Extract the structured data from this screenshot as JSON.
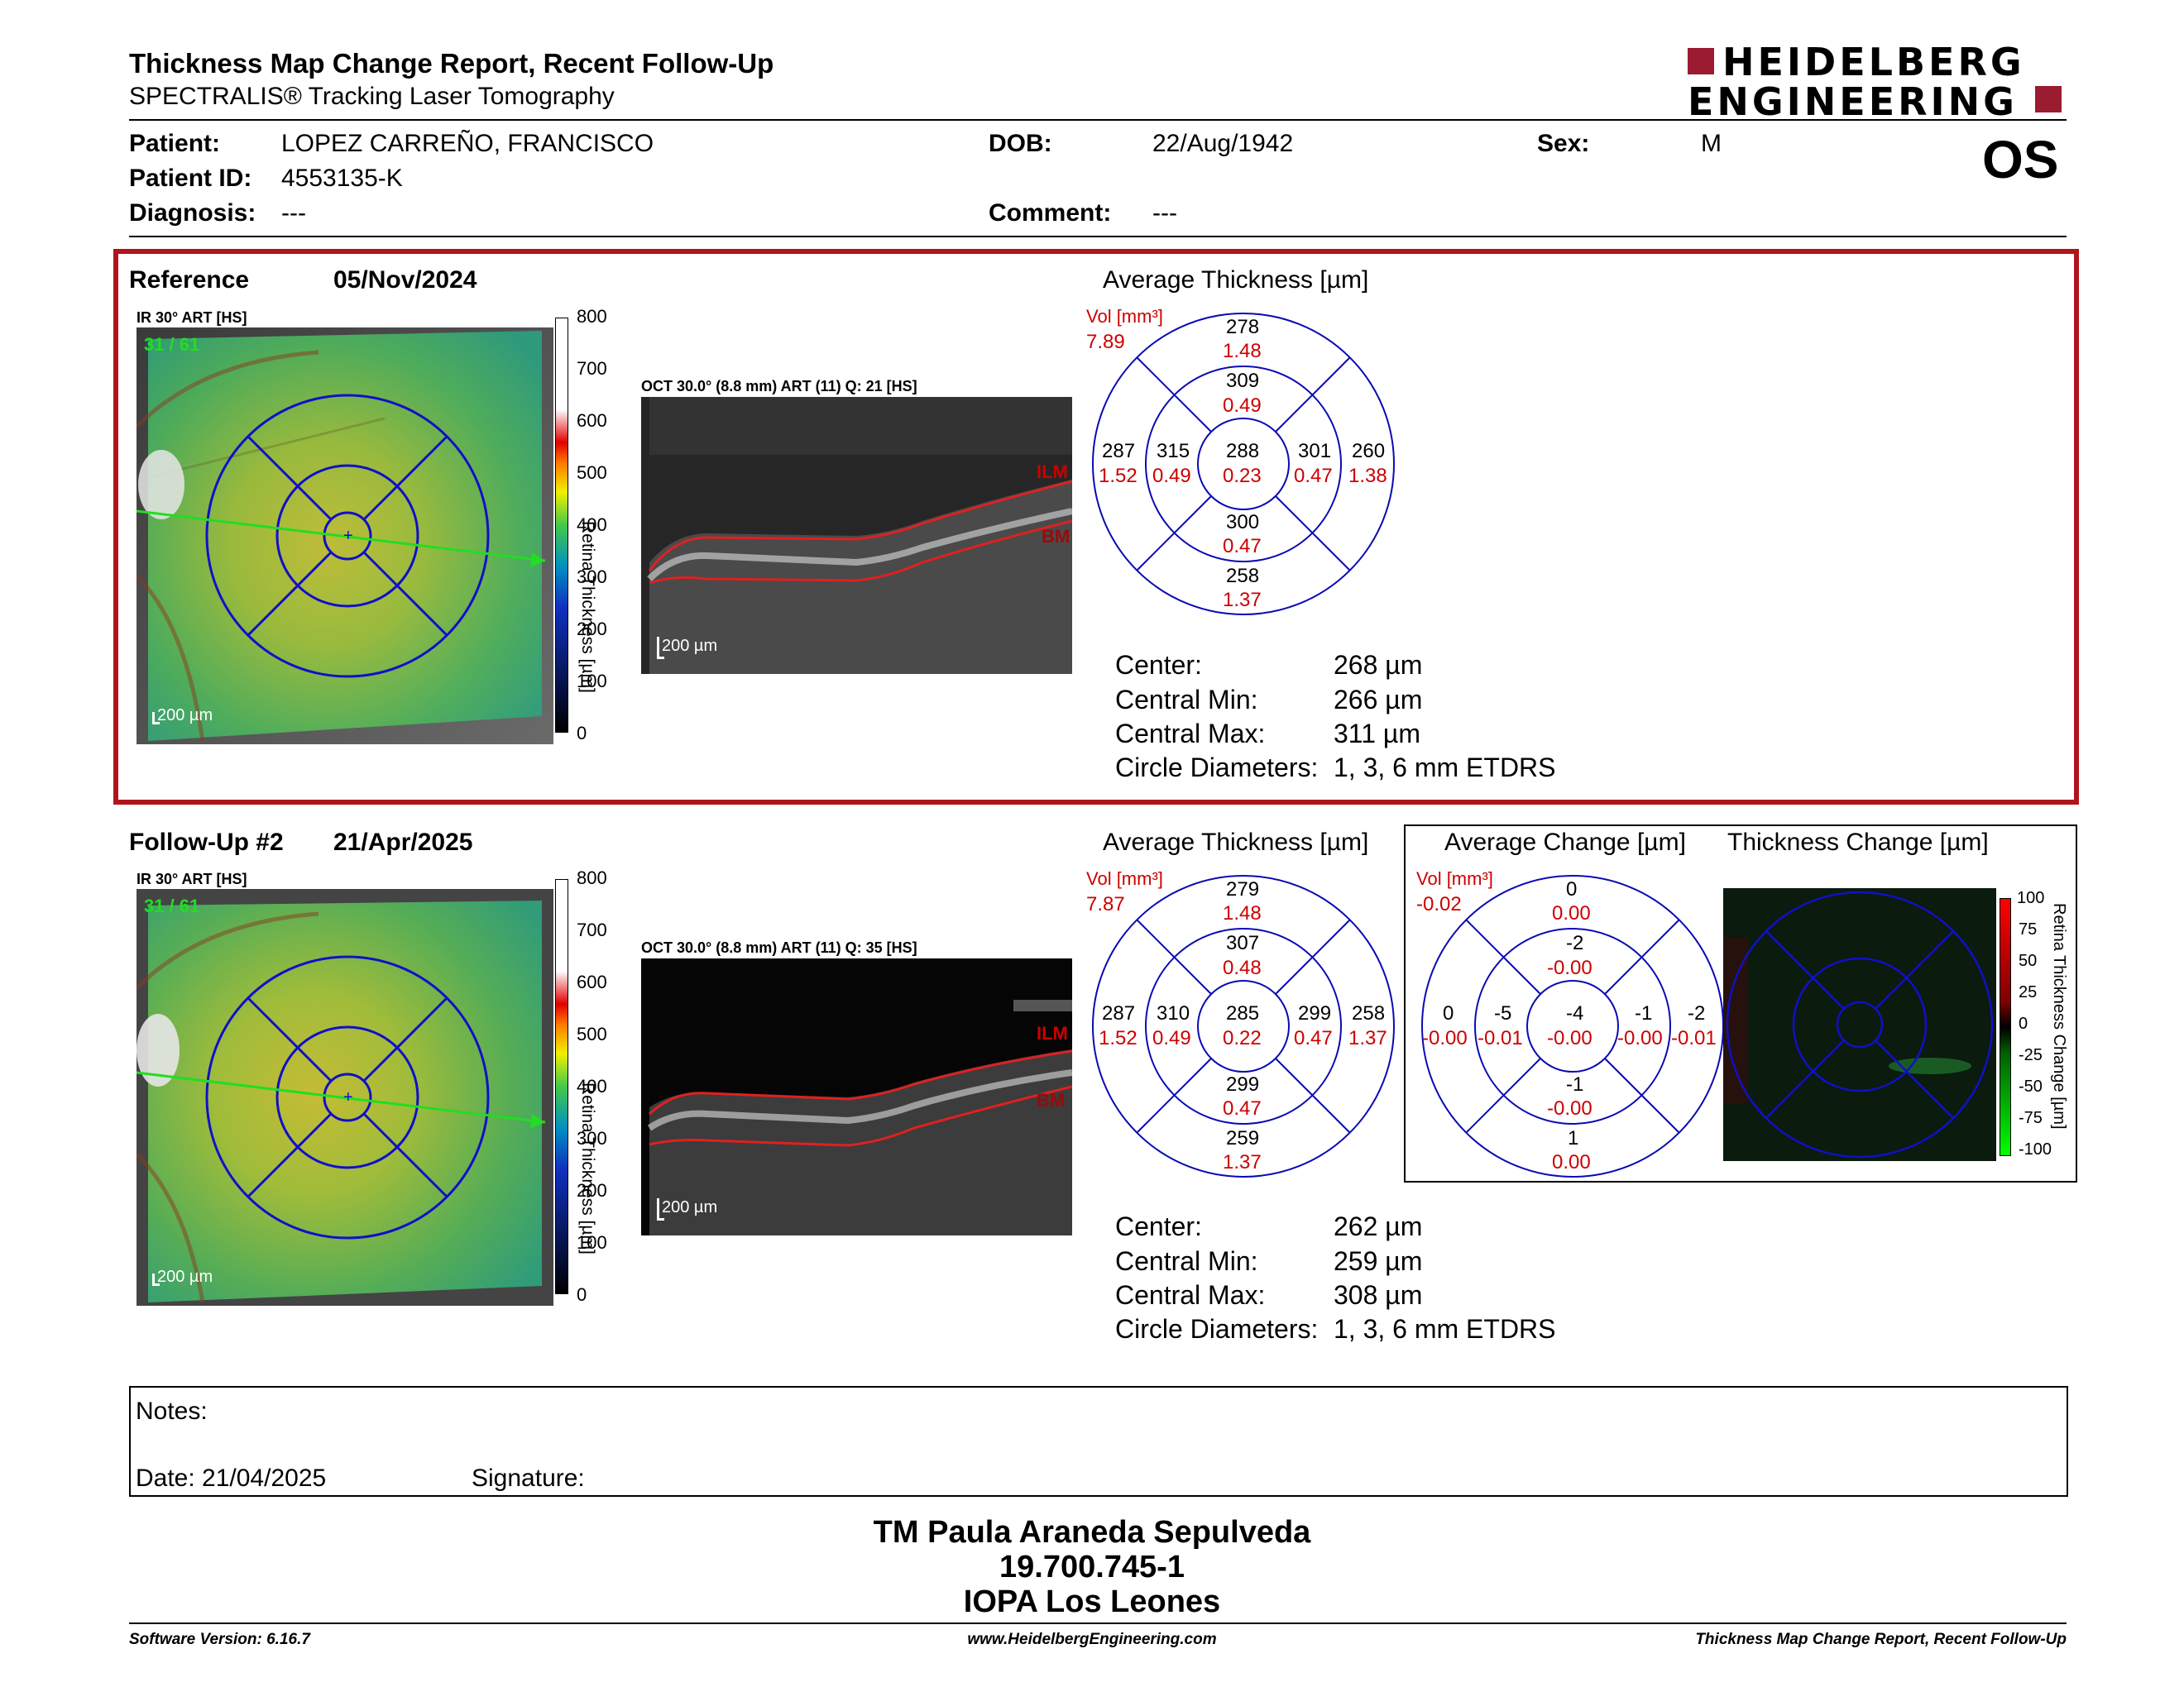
{
  "header": {
    "title": "Thickness Map Change Report, Recent Follow-Up",
    "subtitle": "SPECTRALIS® Tracking Laser Tomography",
    "logo_line1": "HEIDELBERG",
    "logo_line2": "ENGINEERING",
    "eye": "OS"
  },
  "patient": {
    "patient_label": "Patient:",
    "patient_name": "LOPEZ CARREÑO, FRANCISCO",
    "id_label": "Patient ID:",
    "id_value": "4553135-K",
    "diagnosis_label": "Diagnosis:",
    "diagnosis_value": "---",
    "dob_label": "DOB:",
    "dob_value": "22/Aug/1942",
    "comment_label": "Comment:",
    "comment_value": "---",
    "sex_label": "Sex:",
    "sex_value": "M"
  },
  "reference": {
    "label": "Reference",
    "date": "05/Nov/2024",
    "ir_label": "IR 30° ART [HS]",
    "ir_counter": "31 / 61",
    "scalebar": "200 µm",
    "oct_label": "OCT 30.0° (8.8 mm) ART (11) Q: 21 [HS]",
    "oct_scalebar": "200 µm",
    "ilm": "ILM",
    "bm": "BM",
    "avg_title": "Average Thickness [µm]",
    "vol_label": "Vol [mm³]",
    "vol_value": "7.89",
    "etdrs": {
      "outer_top": [
        "278",
        "1.48"
      ],
      "inner_top": [
        "309",
        "0.49"
      ],
      "center": [
        "288",
        "0.23"
      ],
      "inner_bottom": [
        "300",
        "0.47"
      ],
      "outer_bottom": [
        "258",
        "1.37"
      ],
      "outer_left": [
        "287",
        "1.52"
      ],
      "inner_left": [
        "315",
        "0.49"
      ],
      "inner_right": [
        "301",
        "0.47"
      ],
      "outer_right": [
        "260",
        "1.38"
      ]
    },
    "stats": {
      "center_label": "Center:",
      "center_value": "268 µm",
      "min_label": "Central Min:",
      "min_value": "266 µm",
      "max_label": "Central Max:",
      "max_value": "311 µm",
      "diam_label": "Circle Diameters:",
      "diam_value": "1, 3, 6 mm ETDRS"
    }
  },
  "followup": {
    "label": "Follow-Up #2",
    "date": "21/Apr/2025",
    "ir_label": "IR 30° ART [HS]",
    "ir_counter": "31 / 61",
    "scalebar": "200 µm",
    "oct_label": "OCT 30.0° (8.8 mm) ART (11) Q: 35 [HS]",
    "oct_scalebar": "200 µm",
    "ilm": "ILM",
    "bm": "BM",
    "avg_title": "Average Thickness [µm]",
    "vol_label": "Vol [mm³]",
    "vol_value": "7.87",
    "etdrs": {
      "outer_top": [
        "279",
        "1.48"
      ],
      "inner_top": [
        "307",
        "0.48"
      ],
      "center": [
        "285",
        "0.22"
      ],
      "inner_bottom": [
        "299",
        "0.47"
      ],
      "outer_bottom": [
        "259",
        "1.37"
      ],
      "outer_left": [
        "287",
        "1.52"
      ],
      "inner_left": [
        "310",
        "0.49"
      ],
      "inner_right": [
        "299",
        "0.47"
      ],
      "outer_right": [
        "258",
        "1.37"
      ]
    },
    "change_title": "Average Change [µm]",
    "change_vol_label": "Vol [mm³]",
    "change_vol_value": "-0.02",
    "change_etdrs": {
      "outer_top": [
        "0",
        "0.00"
      ],
      "inner_top": [
        "-2",
        "-0.00"
      ],
      "center": [
        "-4",
        "-0.00"
      ],
      "inner_bottom": [
        "-1",
        "-0.00"
      ],
      "outer_bottom": [
        "1",
        "0.00"
      ],
      "outer_left": [
        "0",
        "-0.00"
      ],
      "inner_left": [
        "-5",
        "-0.01"
      ],
      "inner_right": [
        "-1",
        "-0.00"
      ],
      "outer_right": [
        "-2",
        "-0.01"
      ]
    },
    "thick_change_title": "Thickness Change [µm]",
    "change_scale": [
      "100",
      "75",
      "50",
      "25",
      "0",
      "-25",
      "-50",
      "-75",
      "-100"
    ],
    "change_axis_label": "Retina Thickness Change [µm]",
    "stats": {
      "center_label": "Center:",
      "center_value": "262 µm",
      "min_label": "Central Min:",
      "min_value": "259 µm",
      "max_label": "Central Max:",
      "max_value": "308 µm",
      "diam_label": "Circle Diameters:",
      "diam_value": "1, 3, 6 mm ETDRS"
    }
  },
  "thickness_scale": [
    "800",
    "700",
    "600",
    "500",
    "400",
    "300",
    "200",
    "100",
    "0"
  ],
  "thickness_axis_label": "Retina Thickness [µm]",
  "notes": {
    "notes_label": "Notes:",
    "date_label": "Date: 21/04/2025",
    "signature_label": "Signature:"
  },
  "signature_block": {
    "line1": "TM Paula Araneda Sepulveda",
    "line2": "19.700.745-1",
    "line3": "IOPA Los Leones"
  },
  "footer": {
    "left": "Software Version: 6.16.7",
    "center": "www.HeidelbergEngineering.com",
    "right": "Thickness Map Change Report, Recent Follow-Up"
  },
  "colors": {
    "brand": "#9b1b30",
    "frame_red": "#b0141c",
    "value_red": "#cc0000",
    "etdrs_blue": "#0a0ab4"
  }
}
